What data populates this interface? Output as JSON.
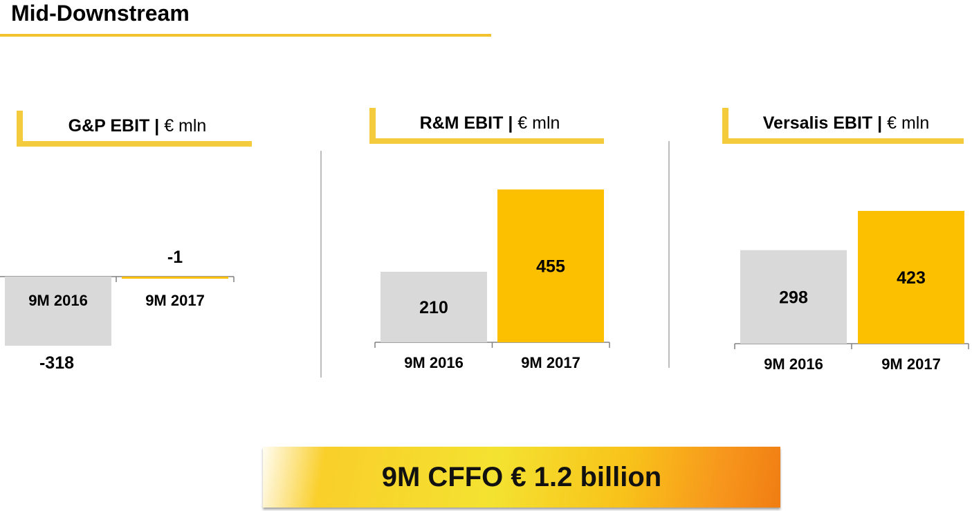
{
  "page": {
    "title": "Mid-Downstream",
    "cffo_banner": "9M CFFO € 1.2 billion"
  },
  "colors": {
    "accent": "#f4cb3c",
    "bar_2016": "#d9d9d9",
    "bar_2017": "#fdc000"
  },
  "chart_data": [
    {
      "type": "bar",
      "title": "G&P EBIT",
      "unit": "€ mln",
      "categories": [
        "9M 2016",
        "9M 2017"
      ],
      "values": [
        -318,
        -1
      ],
      "value_labels": [
        "-318",
        "-1"
      ]
    },
    {
      "type": "bar",
      "title": "R&M EBIT",
      "unit": "€ mln",
      "categories": [
        "9M 2016",
        "9M 2017"
      ],
      "values": [
        210,
        455
      ],
      "value_labels": [
        "210",
        "455"
      ]
    },
    {
      "type": "bar",
      "title": "Versalis EBIT",
      "unit": "€ mln",
      "categories": [
        "9M 2016",
        "9M 2017"
      ],
      "values": [
        298,
        423
      ],
      "value_labels": [
        "298",
        "423"
      ]
    }
  ]
}
